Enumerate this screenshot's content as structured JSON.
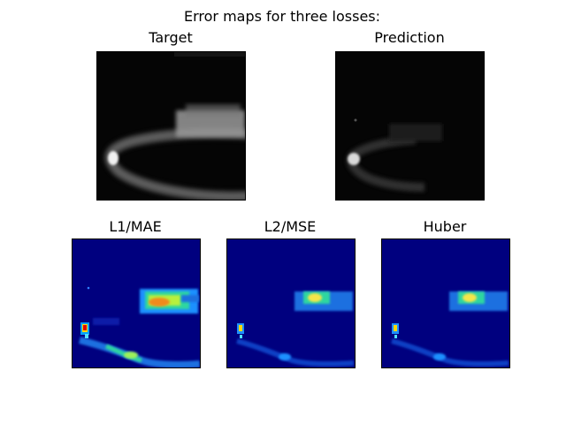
{
  "figure_title": "Error maps for three losses:",
  "chart_data": [
    {
      "type": "heatmap",
      "title": "Target",
      "colormap": "gray",
      "description_values": "dark background, bright curved C-shaped band opening to the right plus a bright blob in upper-right"
    },
    {
      "type": "heatmap",
      "title": "Prediction",
      "colormap": "gray",
      "description_values": "dark background, faint bright spot at left tip of curve"
    },
    {
      "type": "heatmap",
      "title": "L1/MAE",
      "colormap": "jet"
    },
    {
      "type": "heatmap",
      "title": "L2/MSE",
      "colormap": "jet"
    },
    {
      "type": "heatmap",
      "title": "Huber",
      "colormap": "jet"
    }
  ]
}
